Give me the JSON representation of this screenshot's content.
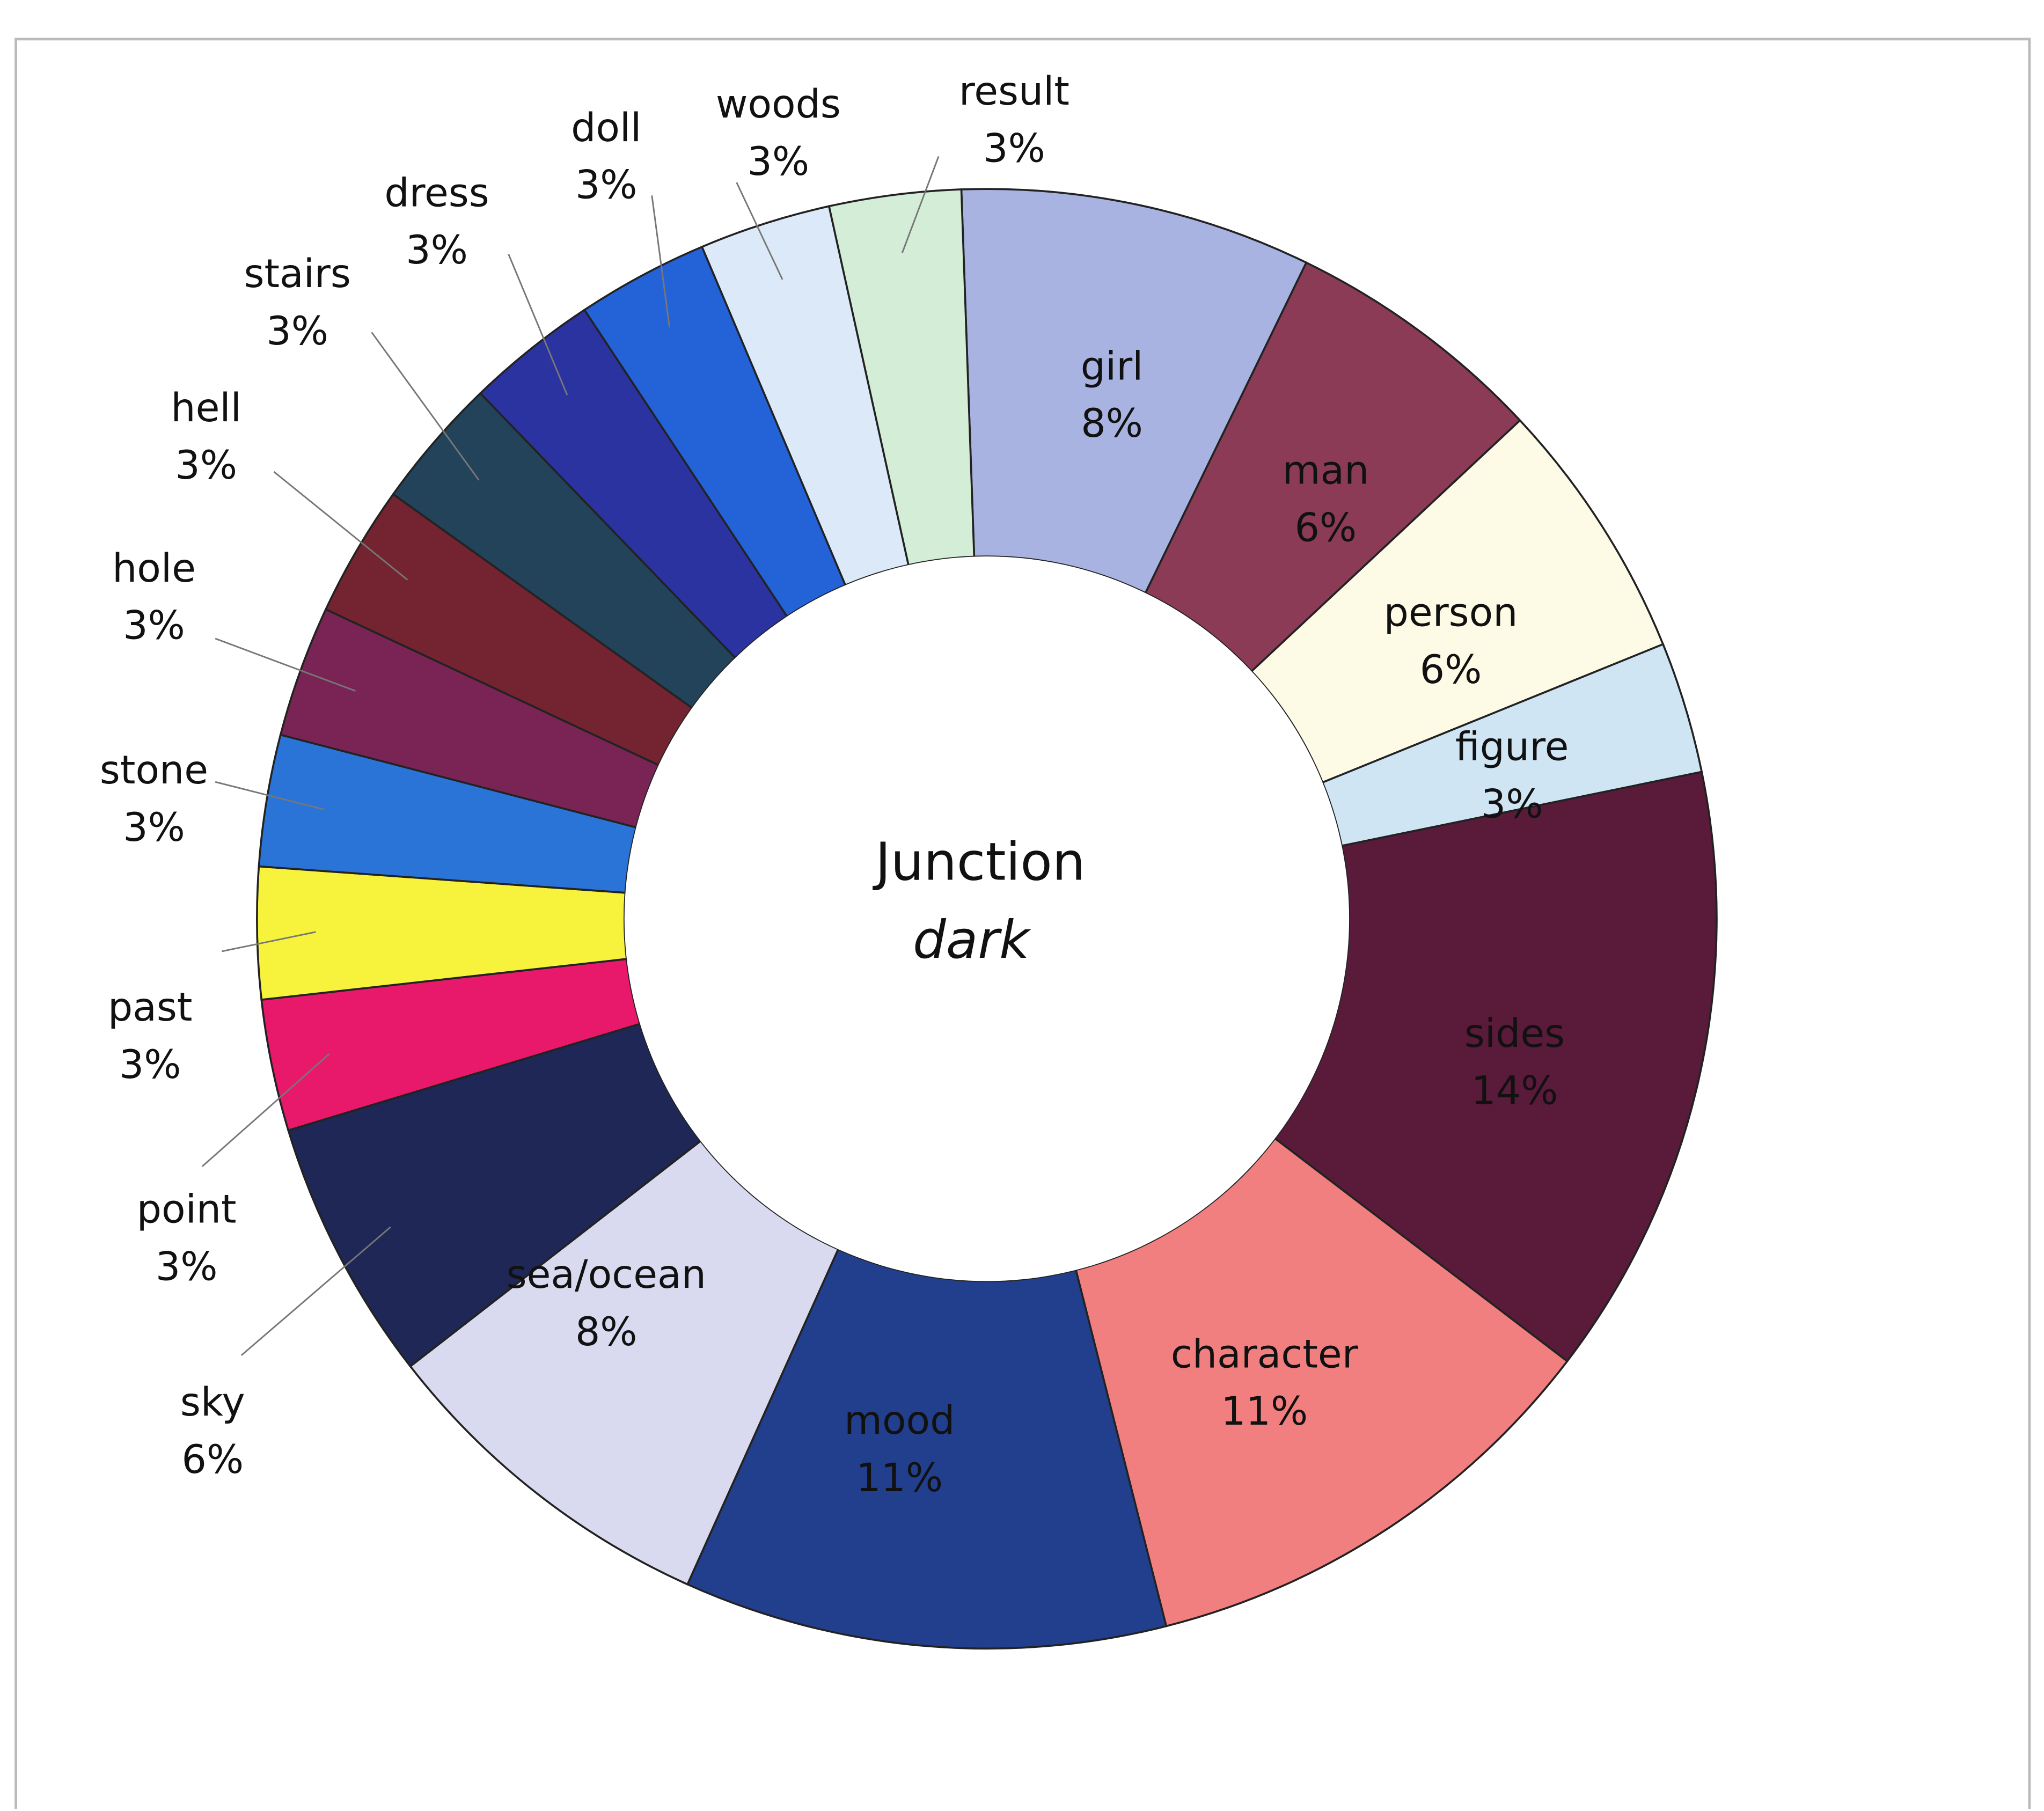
{
  "chart_data": {
    "type": "donut",
    "title": "Junction",
    "subtitle": "dark",
    "categories": [
      "girl",
      "man",
      "person",
      "figure",
      "sides",
      "character",
      "mood",
      "sea/ocean",
      "sky",
      "point",
      "past",
      "stone",
      "hole",
      "hell",
      "stairs",
      "dress",
      "doll",
      "woods",
      "result"
    ],
    "values": [
      8,
      6,
      6,
      3,
      14,
      11,
      11,
      8,
      6,
      3,
      3,
      3,
      3,
      3,
      3,
      3,
      3,
      3,
      3
    ],
    "value_labels": [
      "8%",
      "6%",
      "6%",
      "3%",
      "14%",
      "11%",
      "11%",
      "8%",
      "6%",
      "3%",
      "3%",
      "3%",
      "3%",
      "3%",
      "3%",
      "3%",
      "3%",
      "3%",
      "3%"
    ],
    "colors": [
      "#a9b3e2",
      "#8b3b55",
      "#fdfbe6",
      "#cfe5f4",
      "#5a1a3a",
      "#f27f7f",
      "#223f8d",
      "#d9daef",
      "#1e2755",
      "#e8196b",
      "#f7f23c",
      "#2a74d8",
      "#7a2456",
      "#742330",
      "#22435a",
      "#2b33a0",
      "#2462d8",
      "#dce9f8",
      "#d4edd7"
    ]
  }
}
